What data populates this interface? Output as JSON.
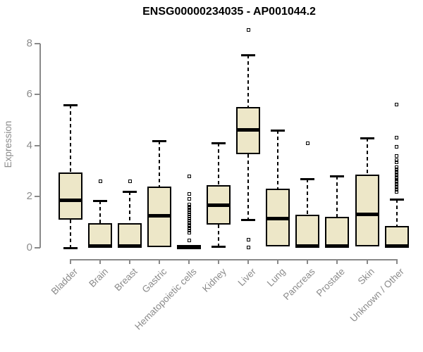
{
  "chart_data": {
    "type": "boxplot",
    "title": "ENSG00000234035 - AP001044.2",
    "ylabel": "Expression",
    "xlabel": "",
    "ylim": [
      0,
      8.6
    ],
    "yticks": [
      0,
      2,
      4,
      6,
      8
    ],
    "grid": false,
    "legend": "none",
    "categories": [
      "Bladder",
      "Brain",
      "Breast",
      "Gastric",
      "Hematopoietic cells",
      "Kidney",
      "Liver",
      "Lung",
      "Pancreas",
      "Prostate",
      "Skin",
      "Unknown / Other"
    ],
    "boxes": [
      {
        "category": "Bladder",
        "whisker_low": 0,
        "q1": 1.1,
        "median": 1.85,
        "q3": 2.95,
        "whisker_high": 5.6,
        "outliers": []
      },
      {
        "category": "Brain",
        "whisker_low": 0,
        "q1": 0,
        "median": 0.05,
        "q3": 0.95,
        "whisker_high": 1.85,
        "outliers": [
          2.6
        ]
      },
      {
        "category": "Breast",
        "whisker_low": 0,
        "q1": 0,
        "median": 0.05,
        "q3": 0.95,
        "whisker_high": 2.2,
        "outliers": [
          2.6
        ]
      },
      {
        "category": "Gastric",
        "whisker_low": 0.02,
        "q1": 0.02,
        "median": 1.25,
        "q3": 2.4,
        "whisker_high": 4.2,
        "outliers": []
      },
      {
        "category": "Hematopoietic cells",
        "whisker_low": 0,
        "q1": 0,
        "median": 0.02,
        "q3": 0.05,
        "whisker_high": 0.05,
        "outliers": [
          2.8,
          2.1,
          1.9,
          1.7,
          1.62,
          1.54,
          1.46,
          1.38,
          1.3,
          1.22,
          1.14,
          1.06,
          0.98,
          0.9,
          0.82,
          0.74,
          0.66,
          0.58,
          0.28
        ]
      },
      {
        "category": "Kidney",
        "whisker_low": 0.05,
        "q1": 0.9,
        "median": 1.65,
        "q3": 2.45,
        "whisker_high": 4.1,
        "outliers": []
      },
      {
        "category": "Liver",
        "whisker_low": 1.1,
        "q1": 3.65,
        "median": 4.63,
        "q3": 5.5,
        "whisker_high": 7.55,
        "outliers": [
          8.55,
          0.3,
          0
        ]
      },
      {
        "category": "Lung",
        "whisker_low": 0.05,
        "q1": 0.05,
        "median": 1.15,
        "q3": 2.3,
        "whisker_high": 4.6,
        "outliers": []
      },
      {
        "category": "Pancreas",
        "whisker_low": 0,
        "q1": 0,
        "median": 0.05,
        "q3": 1.3,
        "whisker_high": 2.7,
        "outliers": [
          4.1
        ]
      },
      {
        "category": "Prostate",
        "whisker_low": 0,
        "q1": 0,
        "median": 0.05,
        "q3": 1.2,
        "whisker_high": 2.8,
        "outliers": []
      },
      {
        "category": "Skin",
        "whisker_low": 0.05,
        "q1": 0.05,
        "median": 1.3,
        "q3": 2.85,
        "whisker_high": 4.3,
        "outliers": []
      },
      {
        "category": "Unknown / Other",
        "whisker_low": 0,
        "q1": 0,
        "median": 0.05,
        "q3": 0.85,
        "whisker_high": 1.9,
        "outliers": [
          5.6,
          4.3,
          3.95,
          3.6,
          3.42,
          3.34,
          3.15,
          3.07,
          3.0,
          2.92,
          2.85,
          2.78,
          2.7,
          2.63,
          2.56,
          2.48,
          2.41,
          2.34,
          2.27,
          2.2
        ]
      }
    ],
    "colors": {
      "box_fill": "#EDE7C8",
      "box_border": "#000000",
      "median": "#000000",
      "whisker": "#000000",
      "outlier": "#000000",
      "axis": "#898989",
      "tick_text": "#8b8b8b",
      "title_text": "#000000",
      "background": "#ffffff"
    }
  }
}
